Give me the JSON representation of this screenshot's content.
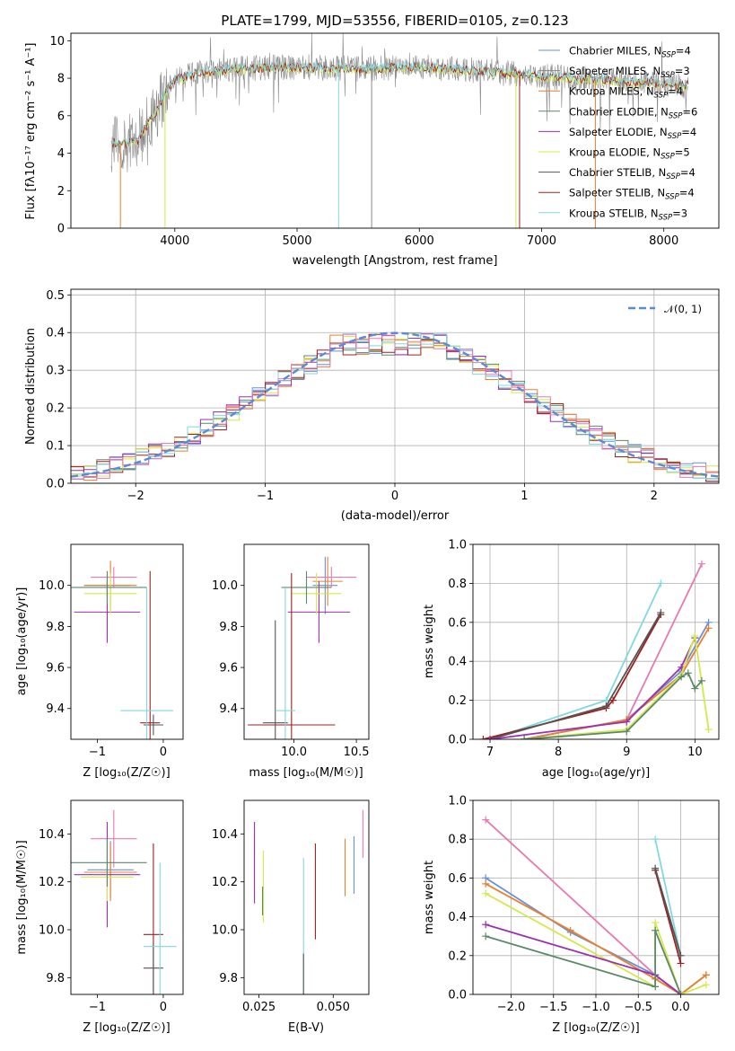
{
  "title": "PLATE=1799, MJD=53556, FIBERID=0105, z=0.123",
  "colors": {
    "Chabrier MILES": "#6a8fdb",
    "Salpeter MILES": "#8a8a8a",
    "Kroupa MILES": "#e8802a",
    "Chabrier ELODIE": "#5a8a6a",
    "Salpeter ELODIE": "#9b30b0",
    "Kroupa ELODIE": "#d4e84a",
    "Chabrier STELIB": "#555555",
    "Salpeter STELIB": "#a02020",
    "Kroupa STELIB": "#80d8e0",
    "Pink": "#e878b0",
    "Gaussian": "#5b8ad6"
  },
  "chart_data": [
    {
      "type": "line",
      "name": "spectrum",
      "xlabel": "wavelength [Angstrom, rest frame]",
      "ylabel": "Flux [fλ10⁻¹⁷ erg cm⁻² s⁻¹ A⁻¹]",
      "xlim": [
        3150,
        8450
      ],
      "ylim": [
        0,
        10.4
      ],
      "xticks": [
        "4000",
        "5000",
        "6000",
        "7000",
        "8000"
      ],
      "yticks": [
        "0",
        "2",
        "4",
        "6",
        "8",
        "10"
      ],
      "legend": [
        {
          "label": "Chabrier MILES, N_SSP=4",
          "text": "Chabrier MILES, N",
          "sub": "SSP",
          "tail": "=4",
          "color": "Chabrier MILES"
        },
        {
          "label": "Salpeter MILES, N_SSP=3",
          "text": "Salpeter MILES, N",
          "sub": "SSP",
          "tail": "=3",
          "color": "Salpeter MILES"
        },
        {
          "label": "Kroupa MILES, N_SSP=4",
          "text": "Kroupa MILES, N",
          "sub": "SSP",
          "tail": "=4",
          "color": "Kroupa MILES"
        },
        {
          "label": "Chabrier ELODIE, N_SSP=6",
          "text": "Chabrier ELODIE, N",
          "sub": "SSP",
          "tail": "=6",
          "color": "Chabrier ELODIE"
        },
        {
          "label": "Salpeter ELODIE, N_SSP=4",
          "text": "Salpeter ELODIE, N",
          "sub": "SSP",
          "tail": "=4",
          "color": "Salpeter ELODIE"
        },
        {
          "label": "Kroupa ELODIE, N_SSP=5",
          "text": "Kroupa ELODIE, N",
          "sub": "SSP",
          "tail": "=5",
          "color": "Kroupa ELODIE"
        },
        {
          "label": "Chabrier STELIB, N_SSP=4",
          "text": "Chabrier STELIB, N",
          "sub": "SSP",
          "tail": "=4",
          "color": "Chabrier STELIB"
        },
        {
          "label": "Salpeter STELIB, N_SSP=4",
          "text": "Salpeter STELIB, N",
          "sub": "SSP",
          "tail": "=4",
          "color": "Salpeter STELIB"
        },
        {
          "label": "Kroupa STELIB, N_SSP=3",
          "text": "Kroupa STELIB, N",
          "sub": "SSP",
          "tail": "=3",
          "color": "Kroupa STELIB"
        }
      ],
      "continuum": {
        "wavelength": [
          3480,
          3600,
          3700,
          3780,
          3850,
          3920,
          4000,
          4200,
          4500,
          5000,
          5500,
          6000,
          6500,
          7000,
          7500,
          8000,
          8200
        ],
        "flux": [
          4.6,
          4.5,
          4.7,
          5.6,
          6.2,
          7.2,
          7.9,
          8.3,
          8.5,
          8.6,
          8.5,
          8.6,
          8.4,
          8.1,
          7.9,
          7.7,
          7.6
        ]
      }
    },
    {
      "type": "line",
      "name": "residual-distribution",
      "xlabel": "(data-model)/error",
      "ylabel": "Normed distribution",
      "xlim": [
        -2.5,
        2.5
      ],
      "ylim": [
        0,
        0.515
      ],
      "xticks": [
        "−2",
        "−1",
        "0",
        "1",
        "2"
      ],
      "yticks": [
        "0.0",
        "0.1",
        "0.2",
        "0.3",
        "0.4",
        "0.5"
      ],
      "legend_label": "𝒩(0, 1)",
      "grid": true
    },
    {
      "type": "scatter",
      "name": "age-vs-Z",
      "xlabel": "Z [log₁₀(Z/Z☉)]",
      "ylabel": "age  [log₁₀(age/yr)]",
      "xlim": [
        -1.4,
        0.3
      ],
      "ylim": [
        9.25,
        10.2
      ],
      "xticks": [
        "−1",
        "0"
      ],
      "yticks": [
        "9.4",
        "9.6",
        "9.8",
        "10.0"
      ]
    },
    {
      "type": "scatter",
      "name": "age-vs-mass",
      "xlabel": "mass [log₁₀(M/M☉)]",
      "xlim": [
        9.6,
        10.6
      ],
      "ylim": [
        9.25,
        10.2
      ],
      "xticks": [
        "10.0",
        "10.5"
      ],
      "yticks": [
        "9.4",
        "9.6",
        "9.8",
        "10.0"
      ]
    },
    {
      "type": "line",
      "name": "mass-weight-vs-age",
      "xlabel": "age  [log₁₀(age/yr)]",
      "ylabel": "mass weight",
      "xlim": [
        6.75,
        10.35
      ],
      "ylim": [
        0,
        1.0
      ],
      "xticks": [
        "7",
        "8",
        "9",
        "10"
      ],
      "yticks": [
        "0.0",
        "0.2",
        "0.4",
        "0.6",
        "0.8",
        "1.0"
      ],
      "grid": true
    },
    {
      "type": "scatter",
      "name": "mass-vs-Z",
      "xlabel": "Z [log₁₀(Z/Z☉)]",
      "ylabel": "mass [log₁₀(M/M☉)]",
      "xlim": [
        -1.4,
        0.3
      ],
      "ylim": [
        9.73,
        10.54
      ],
      "xticks": [
        "−1",
        "0"
      ],
      "yticks": [
        "9.8",
        "10.0",
        "10.2",
        "10.4"
      ]
    },
    {
      "type": "scatter",
      "name": "mass-vs-EBV",
      "xlabel": "E(B-V)",
      "xlim": [
        0.02,
        0.062
      ],
      "ylim": [
        9.73,
        10.54
      ],
      "xticks": [
        "0.025",
        "0.050"
      ],
      "yticks": [
        "9.8",
        "10.0",
        "10.2",
        "10.4"
      ]
    },
    {
      "type": "line",
      "name": "mass-weight-vs-Z",
      "xlabel": "Z [log₁₀(Z/Z☉)]",
      "ylabel": "mass weight",
      "xlim": [
        -2.45,
        0.45
      ],
      "ylim": [
        0,
        1.0
      ],
      "xticks": [
        "−2.0",
        "−1.5",
        "−1.0",
        "−0.5",
        "0.0"
      ],
      "yticks": [
        "0.0",
        "0.2",
        "0.4",
        "0.6",
        "0.8",
        "1.0"
      ],
      "grid": true
    }
  ]
}
